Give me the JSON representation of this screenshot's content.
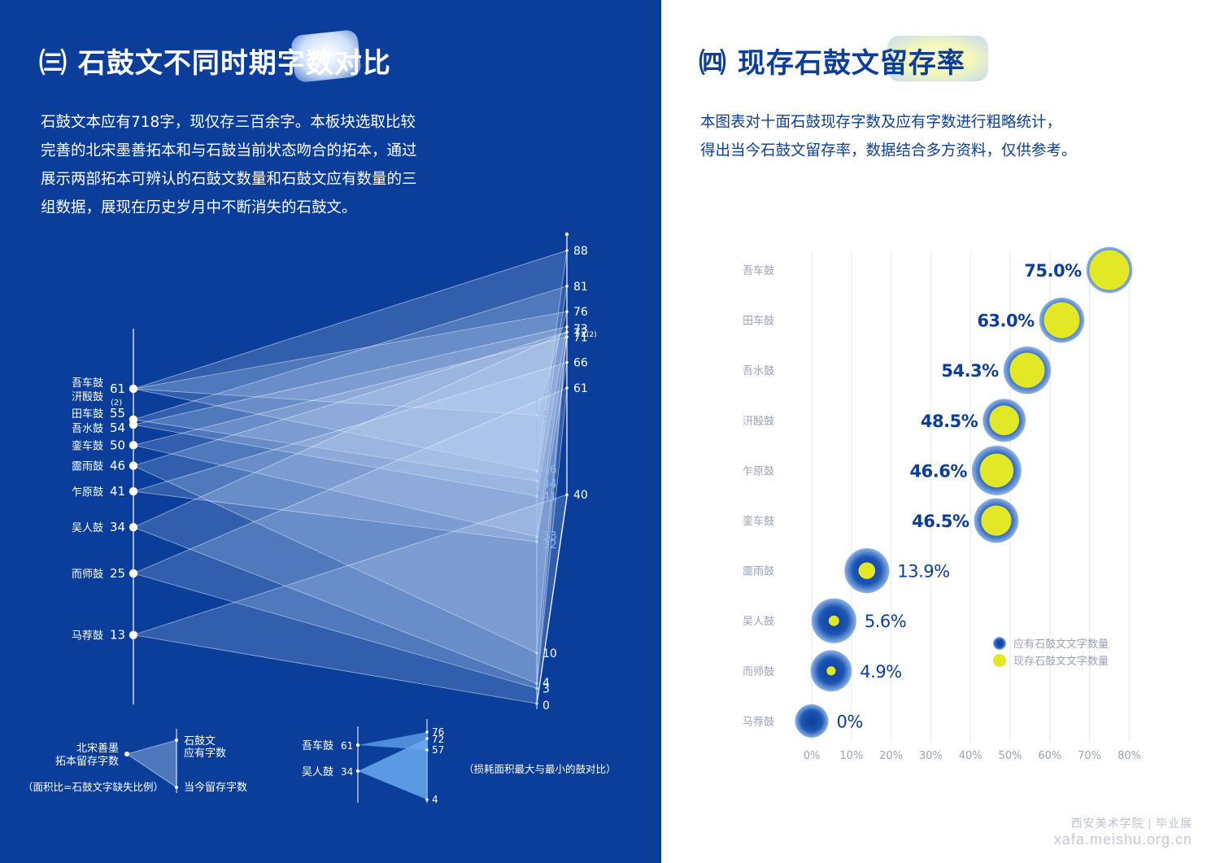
{
  "left_panel": {
    "title": "㈢ 石鼓文不同时期字数对比",
    "paragraph": "石鼓文本应有718字，现仅存三百余字。本板块选取比较\n完善的北宋墨善拓本和与石鼓当前状态吻合的拓本，通过\n展示两部拓本可辨认的石鼓文数量和石鼓文应有数量的三\n组数据，展现在历史岁月中不断消失的石鼓文。",
    "legend": {
      "left_label_line1": "北宋善墨",
      "left_label_line2": "拓本留存字数",
      "top_label_line1": "石鼓文",
      "top_label_line2": "应有字数",
      "bottom_label": "当今留存字数",
      "note": "（面积比=石鼓文字缺失比例）",
      "compare_note": "（损耗面积最大与最小的鼓对比）"
    },
    "compare": {
      "items": [
        {
          "name": "吾车鼓",
          "song": 61,
          "should": 76,
          "now": 57
        },
        {
          "name": "吴人鼓",
          "song": 34,
          "should": 72,
          "now": 4
        }
      ],
      "tick_labels": [
        "76",
        "72",
        "57",
        "4"
      ]
    },
    "colors": {
      "background": "#0a3e9a",
      "band": "#cfe3fb",
      "axis": "#ffffff"
    }
  },
  "right_panel": {
    "title": "㈣ 现存石鼓文留存率",
    "paragraph": "本图表对十面石鼓现存字数及应有字数进行粗略统计，\n得出当今石鼓文留存率，数据结合多方资料，仅供参考。",
    "legend": [
      {
        "label": "应有石鼓文文字数量",
        "color": "#1a4fa8"
      },
      {
        "label": "现存石鼓文文字数量",
        "color": "#e3e826"
      }
    ],
    "colors": {
      "outer": "#1a4fa8",
      "inner": "#e3e826",
      "text": "#0a3e9a",
      "label": "#9aa3b5"
    }
  },
  "chart_data": [
    {
      "type": "parallel-band",
      "title": "㈢ 石鼓文不同时期字数对比",
      "axes": [
        "北宋拓本留存字数",
        "当今留存字数",
        "石鼓文应有字数"
      ],
      "left_ticks": [
        {
          "name_line1": "吾车鼓",
          "name_line2": "汧殹鼓",
          "label": "61",
          "note": "(2)",
          "value": 61
        },
        {
          "name_line1": "田车鼓",
          "name_line2": "",
          "label": "55",
          "note": "",
          "value": 55
        },
        {
          "name_line1": "吾水鼓",
          "name_line2": "",
          "label": "54",
          "note": "",
          "value": 54
        },
        {
          "name_line1": "銮车鼓",
          "name_line2": "",
          "label": "50",
          "note": "",
          "value": 50
        },
        {
          "name_line1": "霝雨鼓",
          "name_line2": "",
          "label": "46",
          "note": "",
          "value": 46
        },
        {
          "name_line1": "乍原鼓",
          "name_line2": "",
          "label": "41",
          "note": "",
          "value": 41
        },
        {
          "name_line1": "吴人鼓",
          "name_line2": "",
          "label": "34",
          "note": "",
          "value": 34
        },
        {
          "name_line1": "而师鼓",
          "name_line2": "",
          "label": "25",
          "note": "",
          "value": 25
        },
        {
          "name_line1": "马荐鼓",
          "name_line2": "",
          "label": "13",
          "note": "",
          "value": 13
        }
      ],
      "middle_ticks": [
        {
          "label": "57",
          "value": 57
        },
        {
          "label": "46",
          "value": 46
        },
        {
          "label": "44",
          "value": 44
        },
        {
          "label": "41",
          "value": 41
        },
        {
          "label": "33",
          "value": 33
        },
        {
          "label": "32",
          "value": 32
        },
        {
          "label": "10",
          "value": 10
        },
        {
          "label": "4",
          "value": 4
        },
        {
          "label": "3",
          "value": 3
        },
        {
          "label": "0",
          "value": 0
        }
      ],
      "right_ticks": [
        {
          "label": "88",
          "note": "",
          "value": 88
        },
        {
          "label": "81",
          "note": "",
          "value": 81
        },
        {
          "label": "76",
          "note": "",
          "value": 76
        },
        {
          "label": "73",
          "note": "",
          "value": 73
        },
        {
          "label": "72",
          "note": "(2)",
          "value": 72
        },
        {
          "label": "71",
          "note": "",
          "value": 71
        },
        {
          "label": "66",
          "note": "",
          "value": 66
        },
        {
          "label": "61",
          "note": "",
          "value": 61
        },
        {
          "label": "40",
          "note": "",
          "value": 40
        }
      ],
      "bands": [
        {
          "song": 61,
          "now": 57,
          "should": 76
        },
        {
          "song": 61,
          "now": 46,
          "should": 88
        },
        {
          "song": 55,
          "now": 44,
          "should": 81
        },
        {
          "song": 54,
          "now": 41,
          "should": 73
        },
        {
          "song": 50,
          "now": 33,
          "should": 71
        },
        {
          "song": 46,
          "now": 10,
          "should": 72
        },
        {
          "song": 41,
          "now": 32,
          "should": 66
        },
        {
          "song": 34,
          "now": 4,
          "should": 72
        },
        {
          "song": 25,
          "now": 3,
          "should": 61
        },
        {
          "song": 13,
          "now": 0,
          "should": 40
        }
      ]
    },
    {
      "type": "bubble",
      "title": "㈣ 现存石鼓文留存率",
      "x_ticks": [
        "0%",
        "10%",
        "20%",
        "30%",
        "40%",
        "50%",
        "60%",
        "70%",
        "80%"
      ],
      "xlim": [
        0,
        80
      ],
      "legend_placement": "bottom-right",
      "rows": [
        {
          "name": "吾车鼓",
          "rate": 75.0,
          "label": "75.0%",
          "should": 76,
          "now": 57
        },
        {
          "name": "田车鼓",
          "rate": 63.0,
          "label": "63.0%",
          "should": 73,
          "now": 46
        },
        {
          "name": "吾水鼓",
          "rate": 54.3,
          "label": "54.3%",
          "should": 81,
          "now": 44
        },
        {
          "name": "汧殹鼓",
          "rate": 48.5,
          "label": "48.5%",
          "should": 66,
          "now": 32
        },
        {
          "name": "乍原鼓",
          "rate": 46.6,
          "label": "46.6%",
          "should": 88,
          "now": 41
        },
        {
          "name": "銮车鼓",
          "rate": 46.5,
          "label": "46.5%",
          "should": 71,
          "now": 33
        },
        {
          "name": "霝雨鼓",
          "rate": 13.9,
          "label": "13.9%",
          "should": 72,
          "now": 10
        },
        {
          "name": "吴人鼓",
          "rate": 5.6,
          "label": "5.6%",
          "should": 72,
          "now": 4
        },
        {
          "name": "而师鼓",
          "rate": 4.9,
          "label": "4.9%",
          "should": 61,
          "now": 3
        },
        {
          "name": "马荐鼓",
          "rate": 0,
          "label": "0%",
          "should": 40,
          "now": 0
        }
      ]
    }
  ],
  "watermark": {
    "school": "西安美术学院 | 毕业展",
    "url": "xafa.meishu.org.cn"
  }
}
